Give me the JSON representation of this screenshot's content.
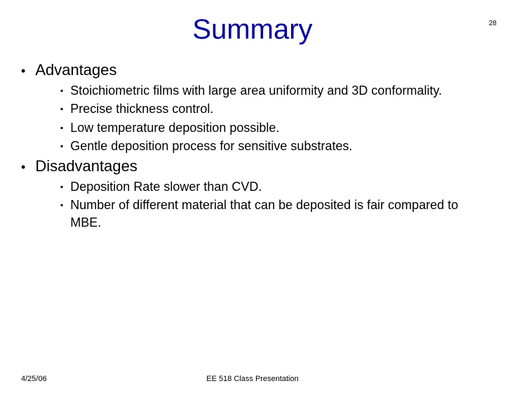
{
  "page_number": "28",
  "title": "Summary",
  "sections": [
    {
      "heading": "Advantages",
      "items": [
        "Stoichiometric films with large area uniformity and 3D conformality.",
        "Precise thickness control.",
        "Low temperature deposition possible.",
        "Gentle deposition process for sensitive substrates."
      ]
    },
    {
      "heading": "Disadvantages",
      "items": [
        "Deposition Rate slower than CVD.",
        "Number of different material that can be deposited is fair compared to MBE."
      ]
    }
  ],
  "footer": {
    "date": "4/25/06",
    "center": "EE 518 Class Presentation"
  },
  "colors": {
    "title_color": "#000099",
    "text_color": "#000000",
    "background": "#ffffff"
  }
}
